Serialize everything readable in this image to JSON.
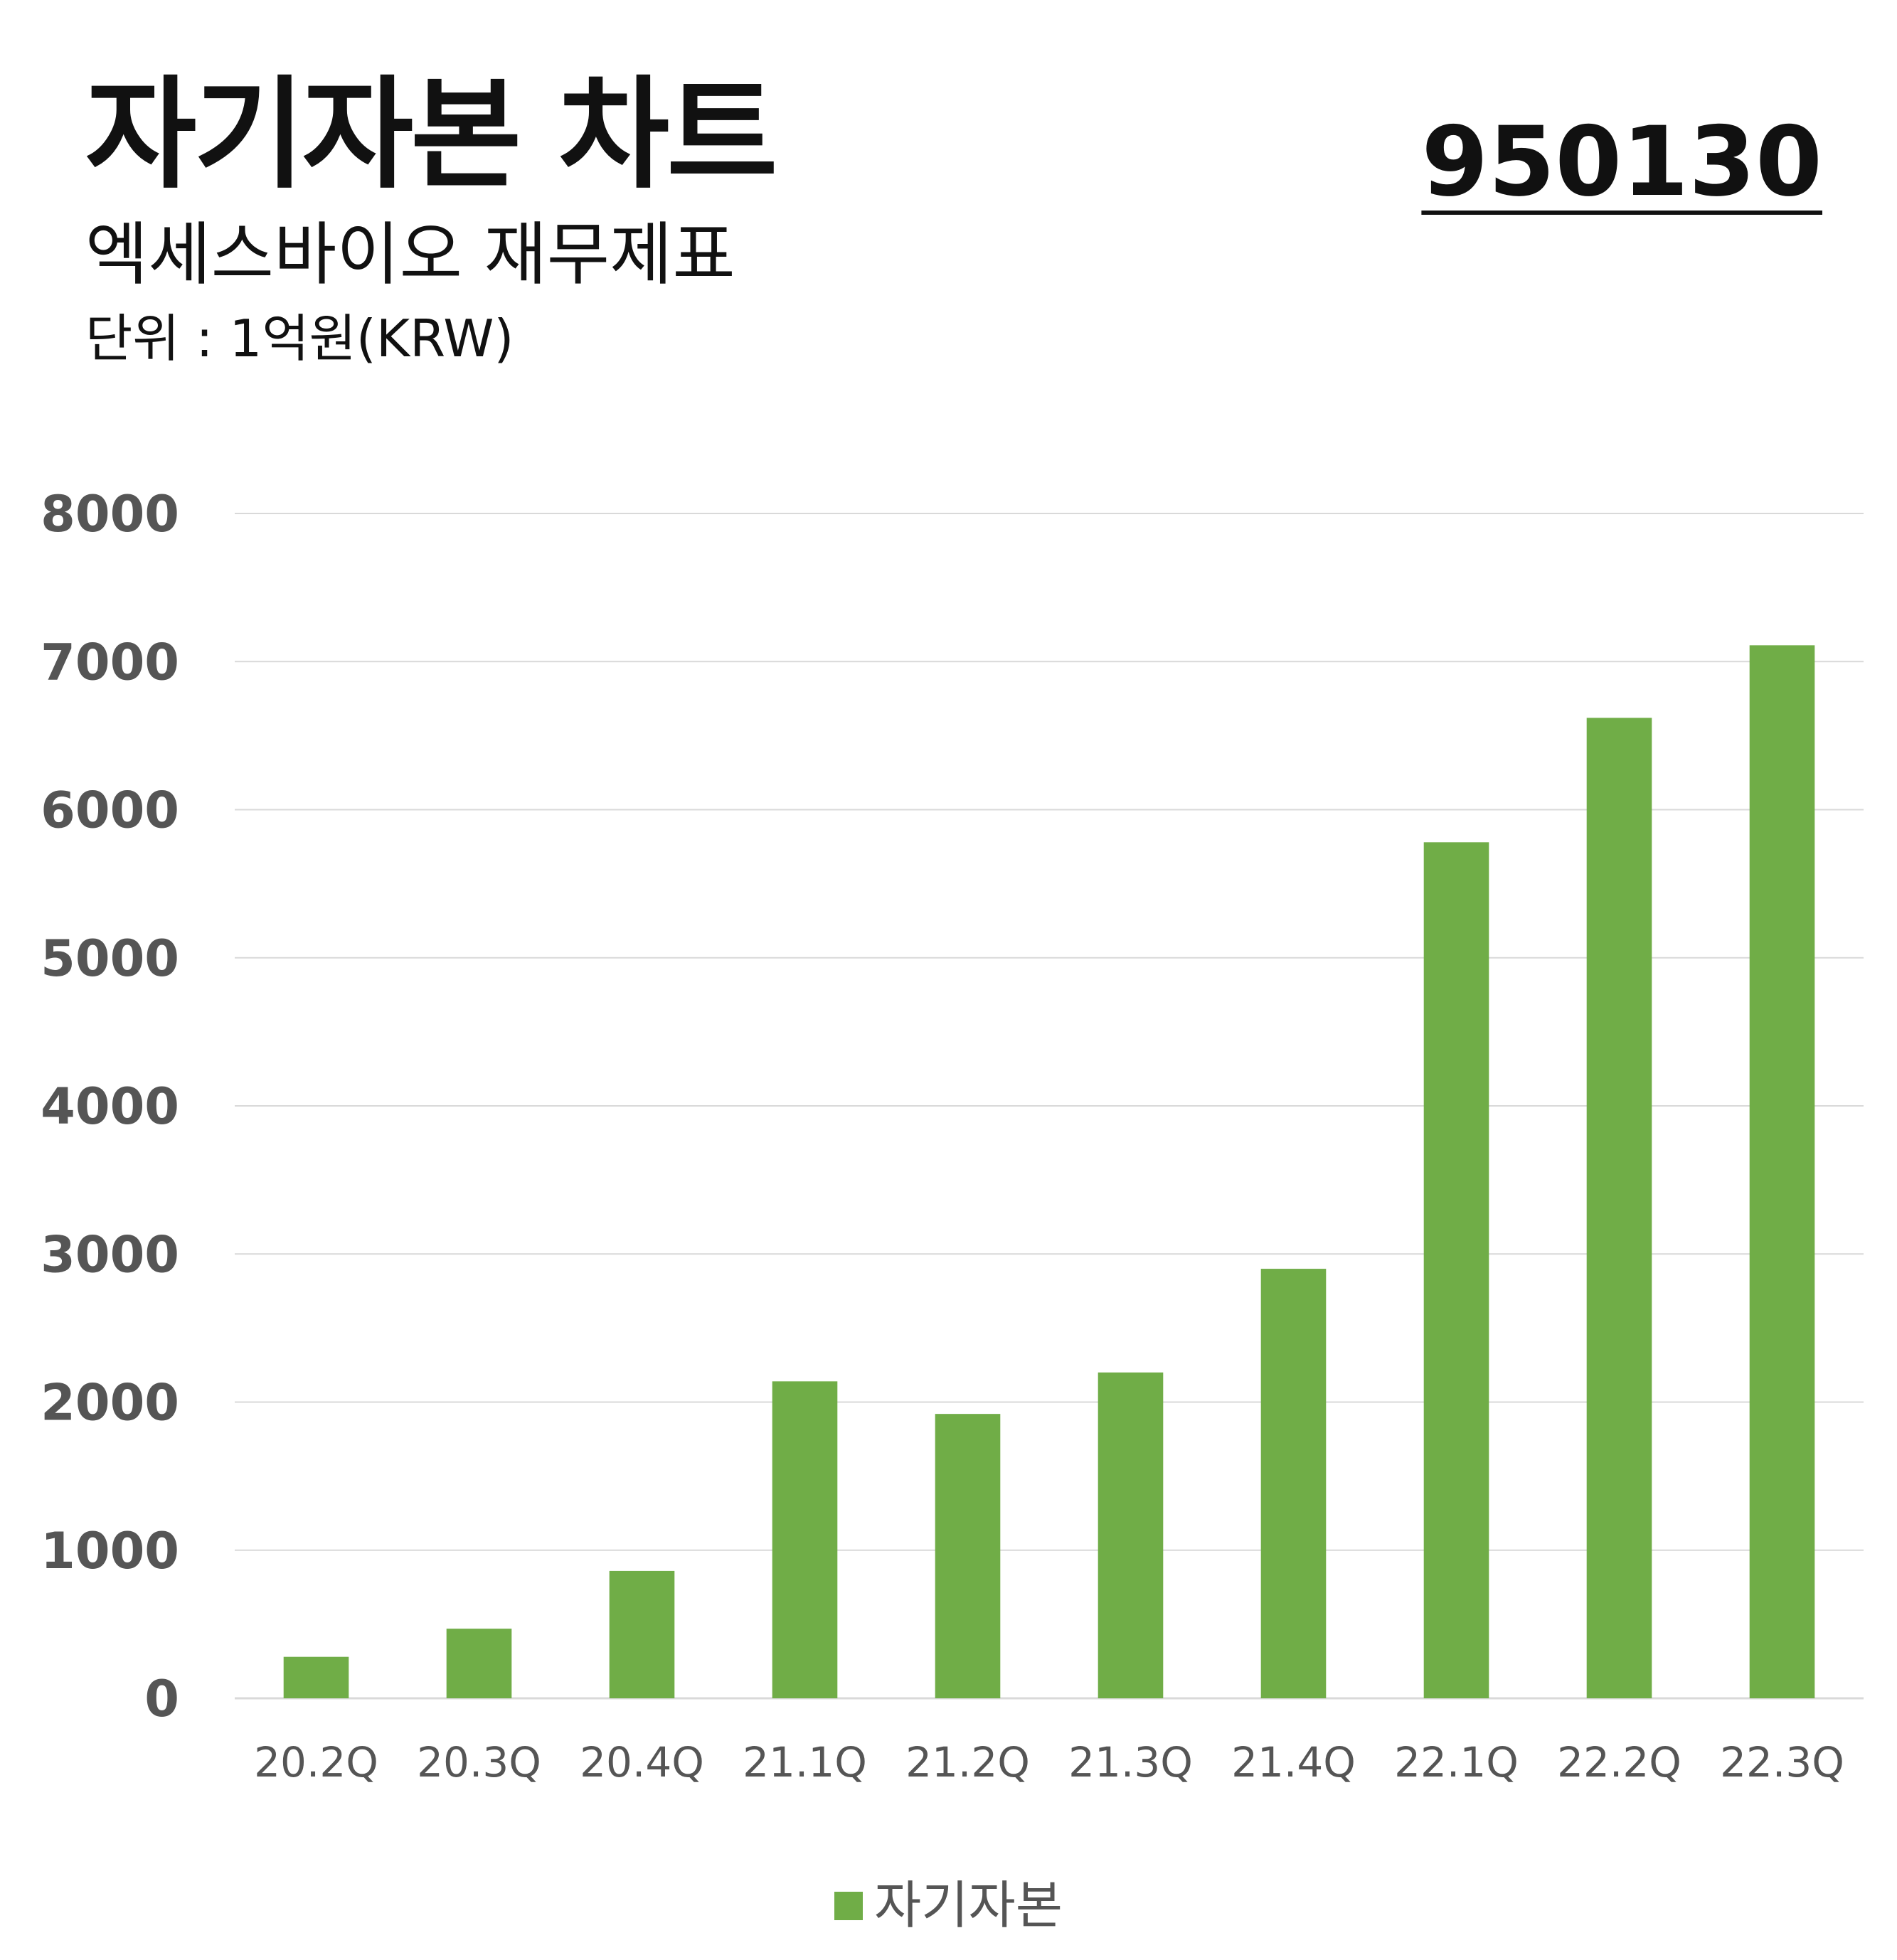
{
  "header": {
    "title": "자기자본 차트",
    "subtitle": "엑세스바이오 재무제표",
    "unit": "단위 : 1억원(KRW)",
    "code": "950130"
  },
  "colors": {
    "bar": "#70ad47",
    "grid": "#d9d9d9",
    "axis_text": "#555555"
  },
  "chart_data": {
    "type": "bar",
    "title": "자기자본 차트",
    "categories": [
      "20.2Q",
      "20.3Q",
      "20.4Q",
      "21.1Q",
      "21.2Q",
      "21.3Q",
      "21.4Q",
      "22.1Q",
      "22.2Q",
      "22.3Q"
    ],
    "series": [
      {
        "name": "자기자본",
        "values": [
          280,
          470,
          860,
          2140,
          1920,
          2200,
          2900,
          5780,
          6620,
          7110
        ]
      }
    ],
    "ylim": [
      0,
      8000
    ],
    "yticks": [
      0,
      1000,
      2000,
      3000,
      4000,
      5000,
      6000,
      7000,
      8000
    ],
    "grid": true,
    "legend": "bottom"
  },
  "legend": {
    "label": "자기자본"
  }
}
